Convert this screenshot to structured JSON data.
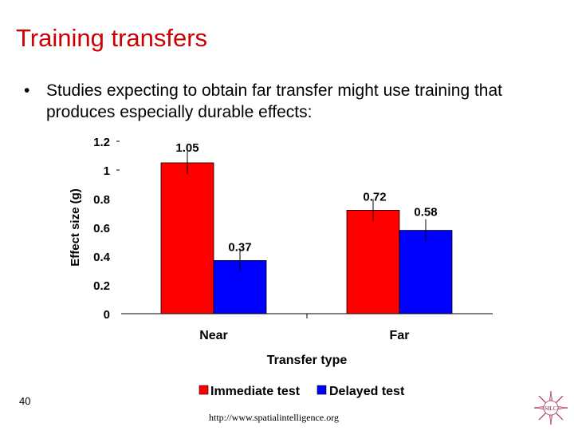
{
  "slide": {
    "title": "Training transfers",
    "bullet": "Studies expecting to obtain far transfer might use training that produces especially durable effects:",
    "page_number": "40",
    "url": "http://www.spatialintelligence.org",
    "logo_text": "SILC"
  },
  "colors": {
    "title": "#cc0000",
    "immediate": "#ff0000",
    "delayed": "#0000ff"
  },
  "chart_data": {
    "type": "bar",
    "categories": [
      "Near",
      "Far"
    ],
    "series": [
      {
        "name": "Immediate test",
        "values": [
          1.05,
          0.72
        ],
        "labels": [
          "1.05",
          "0.72"
        ]
      },
      {
        "name": "Delayed test",
        "values": [
          0.37,
          0.58
        ],
        "labels": [
          "0.37",
          "0.58"
        ]
      }
    ],
    "xlabel": "Transfer type",
    "ylabel": "Effect size (g)",
    "ylim": [
      0,
      1.2
    ],
    "yticks": [
      0,
      0.2,
      0.4,
      0.6,
      0.8,
      1,
      1.2
    ],
    "ytick_labels": [
      "0",
      "0.2",
      "0.4",
      "0.6",
      "0.8",
      "1",
      "1.2"
    ],
    "error_bars": true,
    "legend_position": "bottom",
    "grid": false
  }
}
